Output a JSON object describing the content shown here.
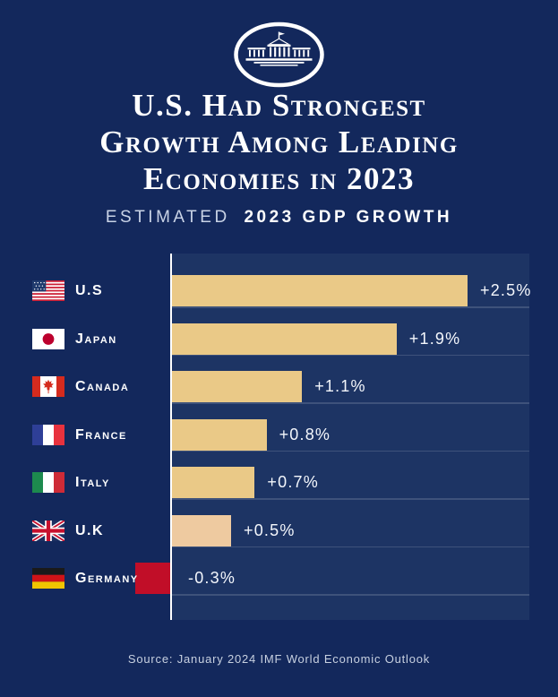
{
  "header": {
    "logo_icon": "white-house-logo",
    "title_lines": [
      "U.S. Had Strongest",
      "Growth Among Leading",
      "Economies in 2023"
    ],
    "subtitle": {
      "light": "Estimated",
      "bold": "2023 GDP Growth"
    }
  },
  "footer": {
    "source": "Source: January 2024 IMF World Economic Outlook"
  },
  "colors": {
    "background": "#13285c",
    "plot_background": "#1d3464",
    "bar_gold": "#eac987",
    "bar_uk_peach": "#eecaa0",
    "bar_negative_red": "#c10e28",
    "axis": "#ffffff",
    "gridline": "rgba(255,255,255,0.15)"
  },
  "chart_data": {
    "type": "bar",
    "orientation": "horizontal",
    "title": "Estimated 2023 GDP Growth",
    "categories": [
      "U.S",
      "Japan",
      "Canada",
      "France",
      "Italy",
      "U.K",
      "Germany"
    ],
    "values": [
      2.5,
      1.9,
      1.1,
      0.8,
      0.7,
      0.5,
      -0.3
    ],
    "value_labels": [
      "+2.5%",
      "+1.9%",
      "+1.1%",
      "+0.8%",
      "+0.7%",
      "+0.5%",
      "-0.3%"
    ],
    "flag_icons": [
      "us-flag-icon",
      "japan-flag-icon",
      "canada-flag-icon",
      "france-flag-icon",
      "italy-flag-icon",
      "uk-flag-icon",
      "germany-flag-icon"
    ],
    "bar_colors": [
      "#eac987",
      "#eac987",
      "#eac987",
      "#eac987",
      "#eac987",
      "#eecaa0",
      "#c10e28"
    ],
    "unit": "%",
    "xlim": [
      -0.45,
      3.03
    ],
    "grid": true,
    "legend": false
  }
}
